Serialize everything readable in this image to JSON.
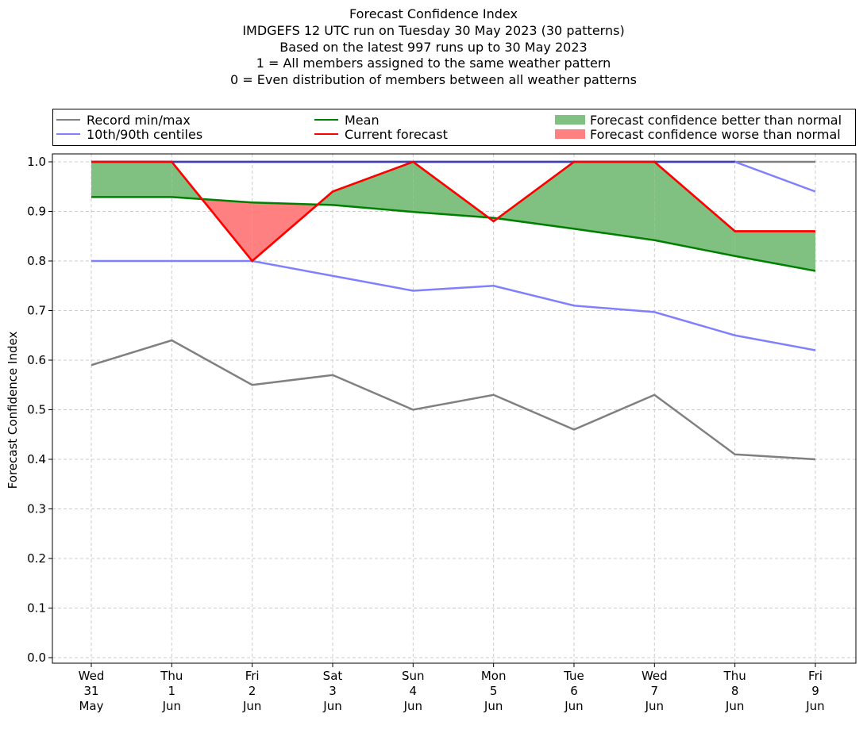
{
  "chart_data": {
    "type": "line",
    "title_lines": [
      "Forecast Confidence Index",
      "IMDGEFS 12 UTC run on Tuesday 30 May 2023 (30 patterns)",
      "Based on the latest 997 runs up to 30 May 2023",
      "1 = All members assigned to the same weather pattern",
      "0 = Even distribution of members between all weather patterns"
    ],
    "ylabel": "Forecast Confidence Index",
    "xlabel": "",
    "ylim": [
      0.0,
      1.0
    ],
    "yticks": [
      "0.0",
      "0.1",
      "0.2",
      "0.3",
      "0.4",
      "0.5",
      "0.6",
      "0.7",
      "0.8",
      "0.9",
      "1.0"
    ],
    "grid": true,
    "categories": [
      [
        "Wed",
        "31",
        "May"
      ],
      [
        "Thu",
        "1",
        "Jun"
      ],
      [
        "Fri",
        "2",
        "Jun"
      ],
      [
        "Sat",
        "3",
        "Jun"
      ],
      [
        "Sun",
        "4",
        "Jun"
      ],
      [
        "Mon",
        "5",
        "Jun"
      ],
      [
        "Tue",
        "6",
        "Jun"
      ],
      [
        "Wed",
        "7",
        "Jun"
      ],
      [
        "Thu",
        "8",
        "Jun"
      ],
      [
        "Fri",
        "9",
        "Jun"
      ]
    ],
    "series": [
      {
        "name": "Record min",
        "color": "#808080",
        "values": [
          0.59,
          0.64,
          0.55,
          0.57,
          0.5,
          0.53,
          0.46,
          0.53,
          0.41,
          0.4
        ]
      },
      {
        "name": "Record max",
        "color": "#808080",
        "values": [
          1.0,
          1.0,
          1.0,
          1.0,
          1.0,
          1.0,
          1.0,
          1.0,
          1.0,
          1.0
        ]
      },
      {
        "name": "10th centile",
        "color": "#8080ff",
        "values": [
          0.8,
          0.8,
          0.8,
          0.77,
          0.74,
          0.75,
          0.71,
          0.697,
          0.65,
          0.62
        ]
      },
      {
        "name": "90th centile",
        "color": "#8080ff",
        "values": [
          1.0,
          1.0,
          1.0,
          1.0,
          1.0,
          1.0,
          1.0,
          1.0,
          1.0,
          0.94
        ]
      },
      {
        "name": "Mean",
        "color": "#008000",
        "values": [
          0.929,
          0.929,
          0.918,
          0.913,
          0.899,
          0.887,
          0.865,
          0.842,
          0.81,
          0.78
        ]
      },
      {
        "name": "Current forecast",
        "color": "#ff0000",
        "values": [
          1.0,
          1.0,
          0.8,
          0.94,
          1.0,
          0.88,
          1.0,
          1.0,
          0.86,
          0.86
        ]
      }
    ],
    "legend": {
      "placement": "top, above plot",
      "entries": [
        {
          "label": "Record min/max",
          "kind": "line",
          "color": "#808080"
        },
        {
          "label": "10th/90th centiles",
          "kind": "line",
          "color": "#8080ff"
        },
        {
          "label": "Mean",
          "kind": "line",
          "color": "#008000"
        },
        {
          "label": "Current forecast",
          "kind": "line",
          "color": "#ff0000"
        },
        {
          "label": "Forecast confidence better than normal",
          "kind": "patch",
          "color": "#80c080"
        },
        {
          "label": "Forecast confidence worse than normal",
          "kind": "patch",
          "color": "#ff8080"
        }
      ]
    }
  }
}
